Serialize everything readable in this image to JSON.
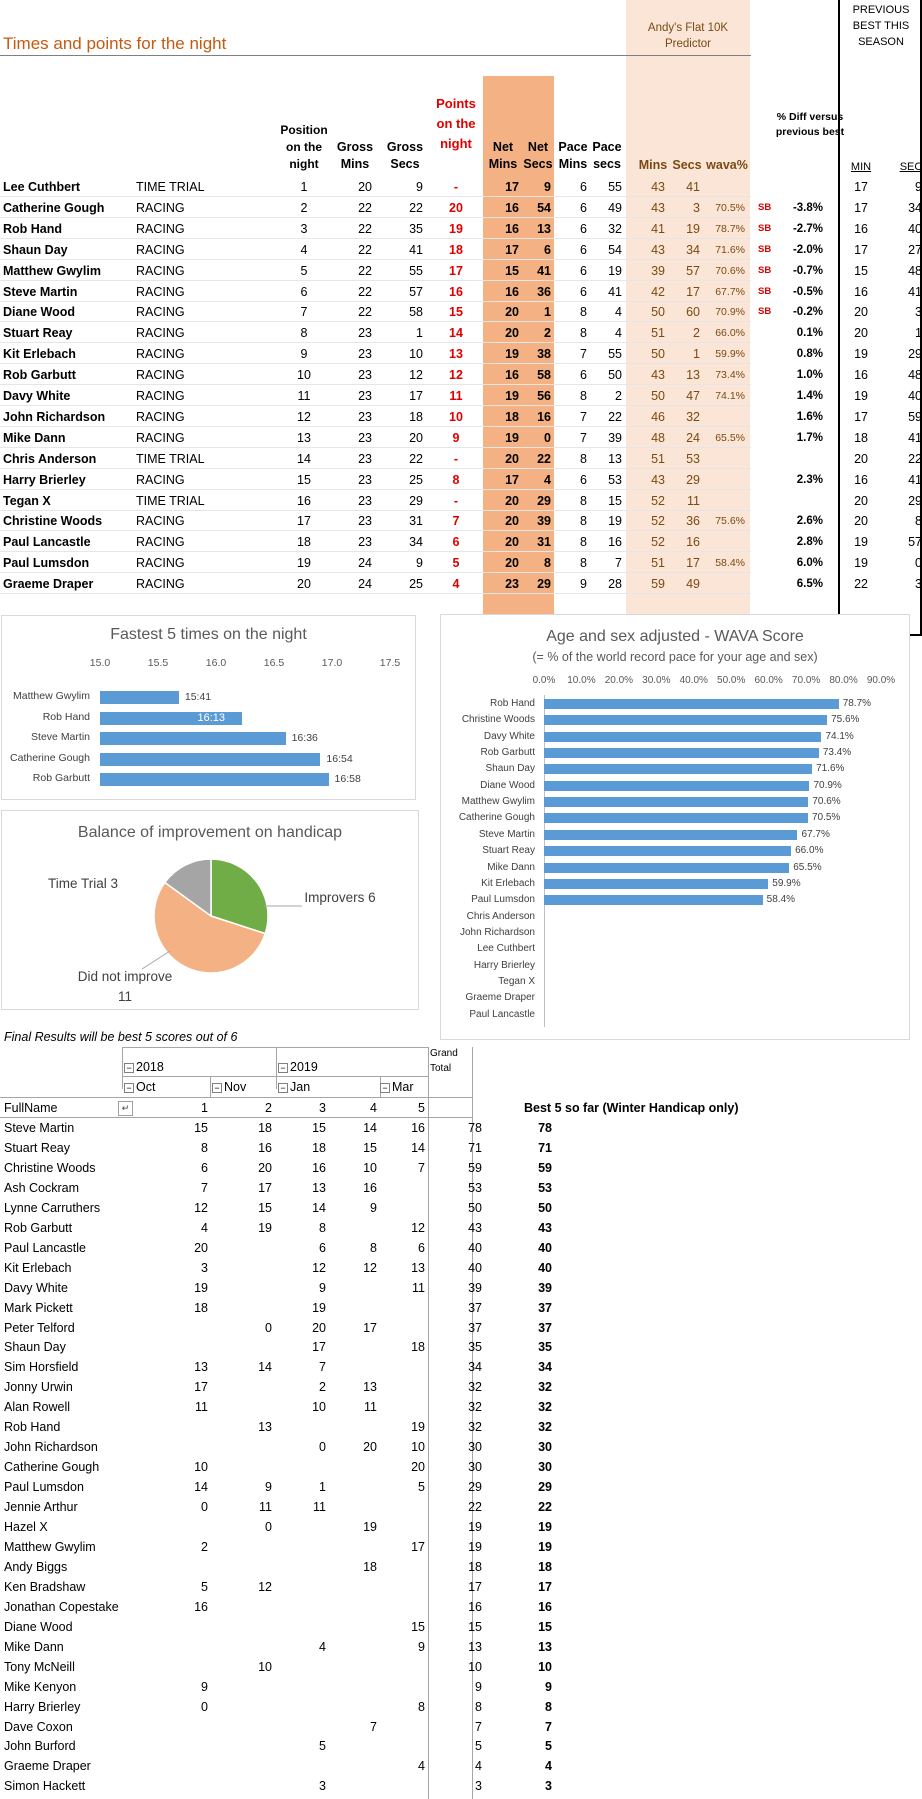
{
  "top": {
    "title": "Times and points for the night",
    "predictor_title": "Andy's Flat 10K Predictor",
    "prev_best_title": "PREVIOUS BEST THIS SEASON",
    "headers": {
      "position": "Position on the night",
      "gross_mins": "Gross Mins",
      "gross_secs": "Gross Secs",
      "points": "Points on the night",
      "net_mins": "Net Mins",
      "net_secs": "Net Secs",
      "pace_mins": "Pace Mins",
      "pace_secs": "Pace secs",
      "pred_mins": "Mins",
      "pred_secs": "Secs",
      "wava": "wava%",
      "pct_diff": "% Diff versus previous best",
      "min": "MIN",
      "sec": "SEC"
    },
    "rows": [
      [
        "Lee Cuthbert",
        "TIME TRIAL",
        "1",
        "20",
        "9",
        "-",
        "17",
        "9",
        "6",
        "55",
        "43",
        "41",
        "",
        "",
        "",
        "17",
        "9"
      ],
      [
        "Catherine Gough",
        "RACING",
        "2",
        "22",
        "22",
        "20",
        "16",
        "54",
        "6",
        "49",
        "43",
        "3",
        "70.5%",
        "SB",
        "-3.8%",
        "17",
        "34"
      ],
      [
        "Rob Hand",
        "RACING",
        "3",
        "22",
        "35",
        "19",
        "16",
        "13",
        "6",
        "32",
        "41",
        "19",
        "78.7%",
        "SB",
        "-2.7%",
        "16",
        "40"
      ],
      [
        "Shaun Day",
        "RACING",
        "4",
        "22",
        "41",
        "18",
        "17",
        "6",
        "6",
        "54",
        "43",
        "34",
        "71.6%",
        "SB",
        "-2.0%",
        "17",
        "27"
      ],
      [
        "Matthew Gwylim",
        "RACING",
        "5",
        "22",
        "55",
        "17",
        "15",
        "41",
        "6",
        "19",
        "39",
        "57",
        "70.6%",
        "SB",
        "-0.7%",
        "15",
        "48"
      ],
      [
        "Steve Martin",
        "RACING",
        "6",
        "22",
        "57",
        "16",
        "16",
        "36",
        "6",
        "41",
        "42",
        "17",
        "67.7%",
        "SB",
        "-0.5%",
        "16",
        "41"
      ],
      [
        "Diane Wood",
        "RACING",
        "7",
        "22",
        "58",
        "15",
        "20",
        "1",
        "8",
        "4",
        "50",
        "60",
        "70.9%",
        "SB",
        "-0.2%",
        "20",
        "3"
      ],
      [
        "Stuart Reay",
        "RACING",
        "8",
        "23",
        "1",
        "14",
        "20",
        "2",
        "8",
        "4",
        "51",
        "2",
        "66.0%",
        "",
        "0.1%",
        "20",
        "1"
      ],
      [
        "Kit Erlebach",
        "RACING",
        "9",
        "23",
        "10",
        "13",
        "19",
        "38",
        "7",
        "55",
        "50",
        "1",
        "59.9%",
        "",
        "0.8%",
        "19",
        "29"
      ],
      [
        "Rob Garbutt",
        "RACING",
        "10",
        "23",
        "12",
        "12",
        "16",
        "58",
        "6",
        "50",
        "43",
        "13",
        "73.4%",
        "",
        "1.0%",
        "16",
        "48"
      ],
      [
        "Davy White",
        "RACING",
        "11",
        "23",
        "17",
        "11",
        "19",
        "56",
        "8",
        "2",
        "50",
        "47",
        "74.1%",
        "",
        "1.4%",
        "19",
        "40"
      ],
      [
        "John Richardson",
        "RACING",
        "12",
        "23",
        "18",
        "10",
        "18",
        "16",
        "7",
        "22",
        "46",
        "32",
        "",
        "",
        "1.6%",
        "17",
        "59"
      ],
      [
        "Mike Dann",
        "RACING",
        "13",
        "23",
        "20",
        "9",
        "19",
        "0",
        "7",
        "39",
        "48",
        "24",
        "65.5%",
        "",
        "1.7%",
        "18",
        "41"
      ],
      [
        "Chris Anderson",
        "TIME TRIAL",
        "14",
        "23",
        "22",
        "-",
        "20",
        "22",
        "8",
        "13",
        "51",
        "53",
        "",
        "",
        "",
        "20",
        "22"
      ],
      [
        "Harry Brierley",
        "RACING",
        "15",
        "23",
        "25",
        "8",
        "17",
        "4",
        "6",
        "53",
        "43",
        "29",
        "",
        "",
        "2.3%",
        "16",
        "41"
      ],
      [
        "Tegan X",
        "TIME TRIAL",
        "16",
        "23",
        "29",
        "-",
        "20",
        "29",
        "8",
        "15",
        "52",
        "11",
        "",
        "",
        "",
        "20",
        "29"
      ],
      [
        "Christine Woods",
        "RACING",
        "17",
        "23",
        "31",
        "7",
        "20",
        "39",
        "8",
        "19",
        "52",
        "36",
        "75.6%",
        "",
        "2.6%",
        "20",
        "8"
      ],
      [
        "Paul Lancastle",
        "RACING",
        "18",
        "23",
        "34",
        "6",
        "20",
        "31",
        "8",
        "16",
        "52",
        "16",
        "",
        "",
        "2.8%",
        "19",
        "57"
      ],
      [
        "Paul Lumsdon",
        "RACING",
        "19",
        "24",
        "9",
        "5",
        "20",
        "8",
        "8",
        "7",
        "51",
        "17",
        "58.4%",
        "",
        "6.0%",
        "19",
        "0"
      ],
      [
        "Graeme Draper",
        "RACING",
        "20",
        "24",
        "25",
        "4",
        "23",
        "29",
        "9",
        "28",
        "59",
        "49",
        "",
        "",
        "6.5%",
        "22",
        "3"
      ]
    ]
  },
  "chart_data": [
    {
      "type": "bar",
      "title": "Fastest 5 times on the night",
      "orientation": "horizontal",
      "categories": [
        "Matthew Gwylim",
        "Rob Hand",
        "Steve Martin",
        "Catherine Gough",
        "Rob Garbutt"
      ],
      "values": [
        15.68,
        16.22,
        16.6,
        16.9,
        16.97
      ],
      "data_labels": [
        "15:41",
        "16:13",
        "16:36",
        "16:54",
        "16:58"
      ],
      "xlim": [
        15.0,
        17.5
      ],
      "xticks": [
        "15.0",
        "15.5",
        "16.0",
        "16.5",
        "17.0",
        "17.5"
      ]
    },
    {
      "type": "bar",
      "title": "Age and sex adjusted - WAVA Score",
      "subtitle": "(= % of the world record pace for your age and sex)",
      "orientation": "horizontal",
      "categories": [
        "Rob Hand",
        "Christine Woods",
        "Davy White",
        "Rob Garbutt",
        "Shaun Day",
        "Diane Wood",
        "Matthew Gwylim",
        "Catherine Gough",
        "Steve Martin",
        "Stuart Reay",
        "Mike Dann",
        "Kit Erlebach",
        "Paul Lumsdon",
        "Chris Anderson",
        "John Richardson",
        "Lee Cuthbert",
        "Harry Brierley",
        "Tegan X",
        "Graeme Draper",
        "Paul Lancastle"
      ],
      "values": [
        78.7,
        75.6,
        74.1,
        73.4,
        71.6,
        70.9,
        70.6,
        70.5,
        67.7,
        66.0,
        65.5,
        59.9,
        58.4,
        0,
        0,
        0,
        0,
        0,
        0,
        0
      ],
      "data_labels": [
        "78.7%",
        "75.6%",
        "74.1%",
        "73.4%",
        "71.6%",
        "70.9%",
        "70.6%",
        "70.5%",
        "67.7%",
        "66.0%",
        "65.5%",
        "59.9%",
        "58.4%",
        "",
        "",
        "",
        "",
        "",
        "",
        ""
      ],
      "xlim": [
        0,
        90
      ],
      "xticks": [
        "0.0%",
        "10.0%",
        "20.0%",
        "30.0%",
        "40.0%",
        "50.0%",
        "60.0%",
        "70.0%",
        "80.0%",
        "90.0%"
      ]
    },
    {
      "type": "pie",
      "title": "Balance of improvement on handicap",
      "slices": [
        {
          "label": "Improvers 6",
          "value": 6,
          "color": "#70ad47"
        },
        {
          "label": "Did not improve 11",
          "value": 11,
          "color": "#f4b183"
        },
        {
          "label": "Time Trial 3",
          "value": 3,
          "color": "#a5a5a5"
        }
      ]
    }
  ],
  "pivot": {
    "caption": "Final Results will be best 5 scores out of 6",
    "year_2018": "2018",
    "year_2019": "2019",
    "grand_total": "Grand Total",
    "months": [
      "Oct",
      "Nov",
      "Jan",
      "Mar"
    ],
    "fullname_header": "FullName",
    "col_nums": [
      "1",
      "2",
      "3",
      "4",
      "5"
    ],
    "best5_header": "Best 5 so far (Winter Handicap only)",
    "rows": [
      [
        "Steve Martin",
        "15",
        "18",
        "15",
        "14",
        "16",
        "78",
        "78"
      ],
      [
        "Stuart Reay",
        "8",
        "16",
        "18",
        "15",
        "14",
        "71",
        "71"
      ],
      [
        "Christine Woods",
        "6",
        "20",
        "16",
        "10",
        "7",
        "59",
        "59"
      ],
      [
        "Ash Cockram",
        "7",
        "17",
        "13",
        "16",
        "",
        "53",
        "53"
      ],
      [
        "Lynne Carruthers",
        "12",
        "15",
        "14",
        "9",
        "",
        "50",
        "50"
      ],
      [
        "Rob Garbutt",
        "4",
        "19",
        "8",
        "",
        "12",
        "43",
        "43"
      ],
      [
        "Paul Lancastle",
        "20",
        "",
        "6",
        "8",
        "6",
        "40",
        "40"
      ],
      [
        "Kit Erlebach",
        "3",
        "",
        "12",
        "12",
        "13",
        "40",
        "40"
      ],
      [
        "Davy White",
        "19",
        "",
        "9",
        "",
        "11",
        "39",
        "39"
      ],
      [
        "Mark Pickett",
        "18",
        "",
        "19",
        "",
        "",
        "37",
        "37"
      ],
      [
        "Peter Telford",
        "",
        "0",
        "20",
        "17",
        "",
        "37",
        "37"
      ],
      [
        "Shaun Day",
        "",
        "",
        "17",
        "",
        "18",
        "35",
        "35"
      ],
      [
        "Sim Horsfield",
        "13",
        "14",
        "7",
        "",
        "",
        "34",
        "34"
      ],
      [
        "Jonny Urwin",
        "17",
        "",
        "2",
        "13",
        "",
        "32",
        "32"
      ],
      [
        "Alan Rowell",
        "11",
        "",
        "10",
        "11",
        "",
        "32",
        "32"
      ],
      [
        "Rob Hand",
        "",
        "13",
        "",
        "",
        "19",
        "32",
        "32"
      ],
      [
        "John Richardson",
        "",
        "",
        "0",
        "20",
        "10",
        "30",
        "30"
      ],
      [
        "Catherine Gough",
        "10",
        "",
        "",
        "",
        "20",
        "30",
        "30"
      ],
      [
        "Paul Lumsdon",
        "14",
        "9",
        "1",
        "",
        "5",
        "29",
        "29"
      ],
      [
        "Jennie Arthur",
        "0",
        "11",
        "11",
        "",
        "",
        "22",
        "22"
      ],
      [
        "Hazel X",
        "",
        "0",
        "",
        "19",
        "",
        "19",
        "19"
      ],
      [
        "Matthew Gwylim",
        "2",
        "",
        "",
        "",
        "17",
        "19",
        "19"
      ],
      [
        "Andy Biggs",
        "",
        "",
        "",
        "18",
        "",
        "18",
        "18"
      ],
      [
        "Ken Bradshaw",
        "5",
        "12",
        "",
        "",
        "",
        "17",
        "17"
      ],
      [
        "Jonathan Copestake",
        "16",
        "",
        "",
        "",
        "",
        "16",
        "16"
      ],
      [
        "Diane Wood",
        "",
        "",
        "",
        "",
        "15",
        "15",
        "15"
      ],
      [
        "Mike Dann",
        "",
        "",
        "4",
        "",
        "9",
        "13",
        "13"
      ],
      [
        "Tony McNeill",
        "",
        "10",
        "",
        "",
        "",
        "10",
        "10"
      ],
      [
        "Mike Kenyon",
        "9",
        "",
        "",
        "",
        "",
        "9",
        "9"
      ],
      [
        "Harry Brierley",
        "0",
        "",
        "",
        "",
        "8",
        "8",
        "8"
      ],
      [
        "Dave Coxon",
        "",
        "",
        "",
        "7",
        "",
        "7",
        "7"
      ],
      [
        "John Burford",
        "",
        "",
        "5",
        "",
        "",
        "5",
        "5"
      ],
      [
        "Graeme Draper",
        "",
        "",
        "",
        "",
        "4",
        "4",
        "4"
      ],
      [
        "Simon Hackett",
        "",
        "",
        "3",
        "",
        "",
        "3",
        "3"
      ]
    ]
  },
  "colors": {
    "title_orange": "#c55a11",
    "net_fill": "#f4b183",
    "predictor_fill": "#fbe5d6",
    "bar_blue": "#5b9bd5",
    "points_red": "#e00000"
  }
}
